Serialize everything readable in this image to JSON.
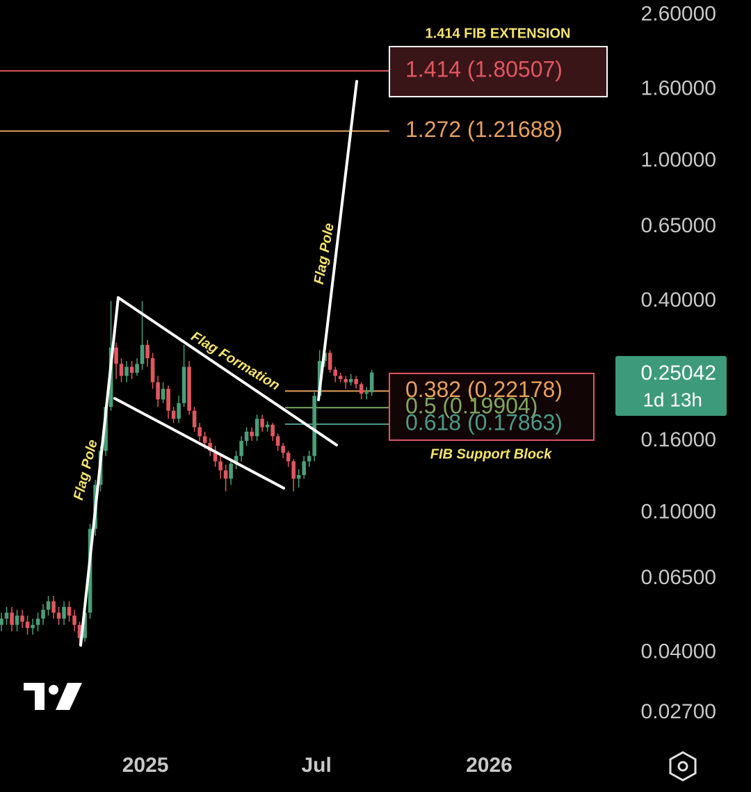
{
  "chart_data": {
    "type": "candlestick",
    "log_scale": true,
    "up_color": "#4a9f78",
    "down_color": "#e0575f",
    "x": [
      0,
      1,
      2,
      3,
      4,
      5,
      6,
      7,
      8,
      9,
      10,
      11,
      12,
      13,
      14,
      15,
      16,
      17,
      18,
      19,
      20,
      21,
      22,
      23,
      24,
      25,
      26,
      27,
      28,
      29,
      30,
      31,
      32,
      33,
      34,
      35,
      36,
      37,
      38,
      39,
      40,
      41,
      42,
      43,
      44,
      45,
      46,
      47,
      48,
      49,
      50,
      51,
      52,
      53,
      54,
      55,
      56,
      57,
      58,
      59,
      60,
      61,
      62,
      63,
      64,
      65,
      66,
      67,
      68,
      69,
      70,
      71
    ],
    "open": [
      0.048,
      0.05,
      0.052,
      0.048,
      0.051,
      0.049,
      0.047,
      0.048,
      0.05,
      0.053,
      0.056,
      0.052,
      0.05,
      0.054,
      0.051,
      0.048,
      0.044,
      0.052,
      0.09,
      0.12,
      0.15,
      0.2,
      0.295,
      0.265,
      0.245,
      0.26,
      0.25,
      0.265,
      0.3,
      0.275,
      0.235,
      0.21,
      0.225,
      0.195,
      0.185,
      0.205,
      0.26,
      0.195,
      0.175,
      0.165,
      0.158,
      0.15,
      0.14,
      0.132,
      0.125,
      0.138,
      0.145,
      0.16,
      0.17,
      0.165,
      0.185,
      0.175,
      0.178,
      0.165,
      0.155,
      0.148,
      0.14,
      0.125,
      0.128,
      0.14,
      0.145,
      0.215,
      0.27,
      0.285,
      0.255,
      0.245,
      0.24,
      0.235,
      0.24,
      0.232,
      0.218,
      0.22
    ],
    "high": [
      0.052,
      0.054,
      0.054,
      0.053,
      0.053,
      0.051,
      0.05,
      0.052,
      0.055,
      0.058,
      0.058,
      0.054,
      0.056,
      0.056,
      0.053,
      0.049,
      0.054,
      0.093,
      0.124,
      0.155,
      0.205,
      0.4,
      0.305,
      0.275,
      0.27,
      0.27,
      0.275,
      0.4,
      0.31,
      0.285,
      0.245,
      0.235,
      0.23,
      0.2,
      0.215,
      0.3,
      0.27,
      0.2,
      0.18,
      0.17,
      0.163,
      0.155,
      0.145,
      0.137,
      0.142,
      0.15,
      0.165,
      0.175,
      0.175,
      0.19,
      0.19,
      0.182,
      0.18,
      0.168,
      0.158,
      0.15,
      0.142,
      0.133,
      0.145,
      0.15,
      0.22,
      0.29,
      0.29,
      0.29,
      0.26,
      0.25,
      0.245,
      0.248,
      0.245,
      0.235,
      0.228,
      0.255
    ],
    "low": [
      0.046,
      0.048,
      0.046,
      0.046,
      0.047,
      0.045,
      0.045,
      0.046,
      0.048,
      0.051,
      0.05,
      0.048,
      0.048,
      0.049,
      0.046,
      0.042,
      0.043,
      0.05,
      0.086,
      0.115,
      0.145,
      0.195,
      0.24,
      0.235,
      0.235,
      0.24,
      0.245,
      0.255,
      0.26,
      0.225,
      0.2,
      0.205,
      0.185,
      0.18,
      0.18,
      0.2,
      0.19,
      0.17,
      0.16,
      0.152,
      0.145,
      0.135,
      0.125,
      0.115,
      0.12,
      0.133,
      0.14,
      0.155,
      0.16,
      0.16,
      0.17,
      0.17,
      0.16,
      0.15,
      0.143,
      0.135,
      0.115,
      0.118,
      0.125,
      0.135,
      0.14,
      0.21,
      0.26,
      0.25,
      0.235,
      0.235,
      0.225,
      0.23,
      0.225,
      0.21,
      0.21,
      0.215
    ],
    "close": [
      0.05,
      0.052,
      0.048,
      0.051,
      0.049,
      0.047,
      0.048,
      0.05,
      0.053,
      0.056,
      0.052,
      0.05,
      0.054,
      0.051,
      0.048,
      0.044,
      0.052,
      0.09,
      0.12,
      0.15,
      0.2,
      0.295,
      0.265,
      0.245,
      0.26,
      0.25,
      0.265,
      0.3,
      0.275,
      0.235,
      0.21,
      0.225,
      0.195,
      0.185,
      0.205,
      0.26,
      0.195,
      0.175,
      0.165,
      0.158,
      0.15,
      0.14,
      0.132,
      0.125,
      0.138,
      0.145,
      0.16,
      0.17,
      0.165,
      0.185,
      0.175,
      0.178,
      0.165,
      0.155,
      0.148,
      0.14,
      0.125,
      0.128,
      0.14,
      0.145,
      0.215,
      0.27,
      0.285,
      0.255,
      0.245,
      0.24,
      0.235,
      0.24,
      0.232,
      0.218,
      0.22,
      0.25042
    ],
    "countdown": "1d 13h",
    "xlim": [
      -0.27,
      117.7
    ],
    "xticks": [
      {
        "value": 27.6,
        "label": "2025"
      },
      {
        "value": 60.4,
        "label": "Jul"
      },
      {
        "value": 93.5,
        "label": "2026"
      }
    ],
    "ylim": [
      0.022,
      2.87
    ],
    "yticks": [
      {
        "value": 2.6,
        "label": "2.60000"
      },
      {
        "value": 1.6,
        "label": "1.60000"
      },
      {
        "value": 1.0,
        "label": "1.00000"
      },
      {
        "value": 0.65,
        "label": "0.65000"
      },
      {
        "value": 0.4,
        "label": "0.40000"
      },
      {
        "value": 0.16,
        "label": "0.16000"
      },
      {
        "value": 0.1,
        "label": "0.10000"
      },
      {
        "value": 0.065,
        "label": "0.06500"
      },
      {
        "value": 0.04,
        "label": "0.04000"
      },
      {
        "value": 0.027,
        "label": "0.02700"
      }
    ],
    "fib_levels": [
      {
        "value": 1.80507,
        "label": "1.414 (1.80507)",
        "color": "#e0575f"
      },
      {
        "value": 1.21688,
        "label": "1.272 (1.21688)",
        "color": "#e8a05a"
      },
      {
        "value": 0.22178,
        "label": "0.382 (0.22178)",
        "color": "#e8a05a"
      },
      {
        "value": 0.19904,
        "label": "0.5 (0.19904)",
        "color": "#7fa860"
      },
      {
        "value": 0.17863,
        "label": "0.618 (0.17863)",
        "color": "#4c9a8a"
      }
    ],
    "annotations": [
      "Flag Pole",
      "Flag Formation",
      "Flag Pole",
      "1.414 FIB EXTENSION",
      "FIB Support Block"
    ]
  }
}
